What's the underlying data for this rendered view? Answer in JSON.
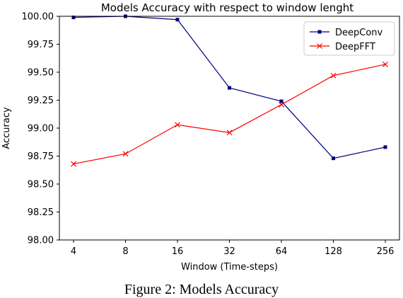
{
  "caption": "Figure 2: Models Accuracy",
  "chart_data": {
    "type": "line",
    "title": "Models Accuracy with respect to window lenght",
    "xlabel": "Window (Time-steps)",
    "ylabel": "Accuracy",
    "x_scale": "log2",
    "x": [
      4,
      8,
      16,
      32,
      64,
      128,
      256
    ],
    "x_tick_labels": [
      "4",
      "8",
      "16",
      "32",
      "64",
      "128",
      "256"
    ],
    "ylim": [
      98.0,
      100.0
    ],
    "y_ticks": [
      98.0,
      98.25,
      98.5,
      98.75,
      99.0,
      99.25,
      99.5,
      99.75,
      100.0
    ],
    "y_tick_labels": [
      "98.00",
      "98.25",
      "98.50",
      "98.75",
      "99.00",
      "99.25",
      "99.50",
      "99.75",
      "100.00"
    ],
    "grid": false,
    "legend_position": "top-right",
    "series": [
      {
        "name": "DeepConv",
        "color": "#000080",
        "marker": "square",
        "values": [
          99.99,
          100.0,
          99.97,
          99.36,
          99.24,
          98.73,
          98.83
        ]
      },
      {
        "name": "DeepFFT",
        "color": "#ff0000",
        "marker": "x",
        "values": [
          98.68,
          98.77,
          99.03,
          98.96,
          99.21,
          99.47,
          99.57
        ]
      }
    ]
  }
}
